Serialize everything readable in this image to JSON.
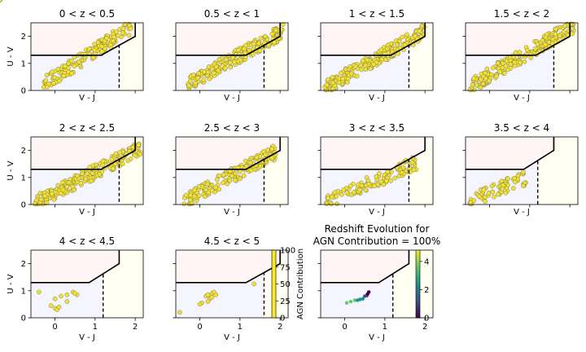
{
  "chart_data": {
    "type": "scatter",
    "xlabel": "V - J",
    "ylabel": "U - V",
    "xlim": [
      -0.6,
      2.2
    ],
    "ylim": [
      0,
      2.5
    ],
    "xticks": [
      "0",
      "1",
      "2"
    ],
    "xtick_values": [
      0,
      1,
      2
    ],
    "yticks": [
      "0",
      "1",
      "2"
    ],
    "ytick_values": [
      0,
      1,
      2
    ],
    "colors": {
      "points": "#f2e22f",
      "quiescent": "#fff5f5",
      "starforming": "#f5f5ff",
      "dusty": "#fffff2"
    },
    "panels": [
      {
        "title": "0 < z < 0.5",
        "boundary": "low",
        "cloud": {
          "xlo": -0.3,
          "xhi": 1.9,
          "ylo": 0.2,
          "yhi": 2.35,
          "n": 170
        }
      },
      {
        "title": "0.5 < z < 1",
        "boundary": "low",
        "cloud": {
          "xlo": -0.3,
          "xhi": 2.1,
          "ylo": 0.25,
          "yhi": 2.2,
          "n": 210
        }
      },
      {
        "title": "1 < z < 1.5",
        "boundary": "low",
        "cloud": {
          "xlo": -0.5,
          "xhi": 2.0,
          "ylo": 0.1,
          "yhi": 2.2,
          "n": 230
        }
      },
      {
        "title": "1.5 < z < 2",
        "boundary": "low",
        "cloud": {
          "xlo": -0.5,
          "xhi": 2.1,
          "ylo": 0.15,
          "yhi": 2.4,
          "n": 230
        }
      },
      {
        "title": "2 < z < 2.5",
        "boundary": "low",
        "cloud": {
          "xlo": -0.5,
          "xhi": 2.15,
          "ylo": 0.05,
          "yhi": 2.1,
          "n": 220
        }
      },
      {
        "title": "2.5 < z < 3",
        "boundary": "low",
        "cloud": {
          "xlo": -0.4,
          "xhi": 1.9,
          "ylo": 0.1,
          "yhi": 1.95,
          "n": 170
        }
      },
      {
        "title": "3 < z < 3.5",
        "boundary": "low",
        "cloud": {
          "xlo": -0.5,
          "xhi": 1.8,
          "ylo": 0.05,
          "yhi": 1.55,
          "n": 120
        }
      },
      {
        "title": "3.5 < z < 4",
        "boundary": "high",
        "cloud": {
          "xlo": -0.5,
          "xhi": 0.9,
          "ylo": 0.1,
          "yhi": 1.0,
          "n": 70
        }
      },
      {
        "title": "4 < z < 4.5",
        "boundary": "high",
        "points": [
          [
            -0.4,
            0.95
          ],
          [
            0.0,
            0.7
          ],
          [
            0.15,
            0.8
          ],
          [
            0.3,
            0.85
          ],
          [
            0.45,
            0.95
          ],
          [
            0.55,
            0.85
          ],
          [
            0.3,
            0.6
          ],
          [
            0.0,
            0.35
          ],
          [
            0.05,
            0.3
          ],
          [
            0.1,
            0.4
          ],
          [
            0.5,
            0.9
          ],
          [
            -0.1,
            0.45
          ]
        ]
      },
      {
        "title": "4.5 < z < 5",
        "boundary": "low",
        "points": [
          [
            0.15,
            0.8
          ],
          [
            0.2,
            0.85
          ],
          [
            0.3,
            0.9
          ],
          [
            0.35,
            0.95
          ],
          [
            0.25,
            0.7
          ],
          [
            0.2,
            0.6
          ],
          [
            0.05,
            0.55
          ],
          [
            0.3,
            0.75
          ],
          [
            0.4,
            0.85
          ],
          [
            -0.5,
            0.2
          ],
          [
            1.35,
            1.25
          ],
          [
            0.0,
            0.5
          ]
        ]
      }
    ],
    "special": {
      "title_line1": "Redshift Evolution for",
      "title_line2": "AGN Contribution = 100%",
      "boundary": "high",
      "points": [
        {
          "x": 0.05,
          "y": 0.55,
          "z": 3.8
        },
        {
          "x": 0.15,
          "y": 0.6,
          "z": 3.5
        },
        {
          "x": 0.25,
          "y": 0.65,
          "z": 3.0
        },
        {
          "x": 0.32,
          "y": 0.65,
          "z": 2.6
        },
        {
          "x": 0.38,
          "y": 0.68,
          "z": 2.2
        },
        {
          "x": 0.45,
          "y": 0.7,
          "z": 1.8
        },
        {
          "x": 0.5,
          "y": 0.8,
          "z": 1.3
        },
        {
          "x": 0.55,
          "y": 0.82,
          "z": 0.9
        },
        {
          "x": 0.57,
          "y": 0.88,
          "z": 0.5
        },
        {
          "x": 0.6,
          "y": 0.95,
          "z": 0.2
        }
      ]
    },
    "colorbars": [
      {
        "label": "AGN Contribution",
        "ticks": [
          "0",
          "25",
          "50",
          "75",
          "100"
        ],
        "tick_values": [
          0,
          25,
          50,
          75,
          100
        ],
        "min": 0,
        "max": 100
      },
      {
        "label": "",
        "ticks": [
          "0",
          "2",
          "4"
        ],
        "tick_values": [
          0,
          2,
          4
        ],
        "min": 0,
        "max": 4.8
      }
    ]
  }
}
